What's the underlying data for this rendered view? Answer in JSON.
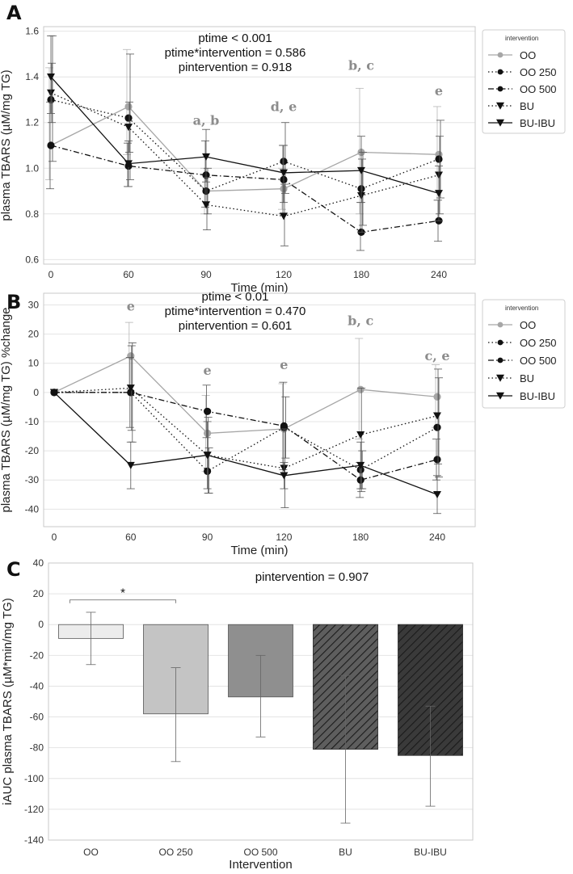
{
  "colors": {
    "OO": "#a6a6a6",
    "OO 250": "#111111",
    "OO 500": "#111111",
    "BU": "#111111",
    "BU-IBU": "#111111",
    "bars": [
      "#ececec",
      "#c4c4c4",
      "#8f8f8f",
      "#5e5e5e",
      "#3a3a3a"
    ]
  },
  "chart_data": [
    {
      "panel": "A",
      "type": "line",
      "xlabel": "Time (min)",
      "ylabel": "plasma TBARS (µM/mg TG)",
      "x": [
        0,
        60,
        90,
        120,
        180,
        240
      ],
      "x_tick_labels": [
        "0",
        "60",
        "90",
        "120",
        "180",
        "240"
      ],
      "ylim": [
        0.58,
        1.62
      ],
      "y_ticks": [
        0.6,
        0.8,
        1.0,
        1.2,
        1.4,
        1.6
      ],
      "y_tick_labels": [
        "0.6",
        "0.8",
        "1.0",
        "1.2",
        "1.4",
        "1.6"
      ],
      "legend_title": "intervention",
      "stats": [
        "ptime < 0.001",
        "ptime*intervention = 0.586",
        "pintervention = 0.918"
      ],
      "annotations": [
        {
          "text": "a, b",
          "x": 90,
          "y": 1.19
        },
        {
          "text": "d, e",
          "x": 120,
          "y": 1.25
        },
        {
          "text": "b, c",
          "x": 180,
          "y": 1.43
        },
        {
          "text": "e",
          "x": 240,
          "y": 1.32
        }
      ],
      "series": [
        {
          "name": "OO",
          "style": "solid",
          "marker": "circle",
          "values": [
            1.1,
            1.27,
            0.9,
            0.91,
            1.07,
            1.06
          ],
          "err_low": [
            0.95,
            1.06,
            0.8,
            0.82,
            0.8,
            0.86
          ],
          "err_high": [
            1.44,
            1.52,
            1.0,
            1.0,
            1.35,
            1.27
          ]
        },
        {
          "name": "OO 250",
          "style": "dotted",
          "marker": "circle",
          "values": [
            1.3,
            1.22,
            0.9,
            1.03,
            0.91,
            1.04
          ],
          "err_low": [
            1.03,
            0.95,
            0.8,
            0.89,
            0.75,
            0.87
          ],
          "err_high": [
            1.58,
            1.5,
            1.0,
            1.2,
            1.07,
            1.21
          ]
        },
        {
          "name": "OO 500",
          "style": "dashdot",
          "marker": "circle",
          "values": [
            1.1,
            1.01,
            0.97,
            0.95,
            0.72,
            0.77
          ],
          "err_low": [
            0.91,
            0.92,
            0.83,
            0.8,
            0.64,
            0.68
          ],
          "err_high": [
            1.29,
            1.11,
            1.12,
            1.1,
            0.85,
            0.86
          ]
        },
        {
          "name": "BU",
          "style": "dotted",
          "marker": "triangle",
          "values": [
            1.33,
            1.18,
            0.84,
            0.79,
            0.88,
            0.97
          ],
          "err_low": [
            1.2,
            1.07,
            0.73,
            0.66,
            0.72,
            0.8
          ],
          "err_high": [
            1.46,
            1.29,
            0.96,
            0.93,
            1.04,
            1.14
          ]
        },
        {
          "name": "BU-IBU",
          "style": "solid",
          "marker": "triangle",
          "values": [
            1.4,
            1.02,
            1.05,
            0.98,
            0.99,
            0.89
          ],
          "err_low": [
            1.24,
            0.92,
            0.94,
            0.85,
            0.85,
            0.77
          ],
          "err_high": [
            1.58,
            1.12,
            1.17,
            1.1,
            1.14,
            1.01
          ]
        }
      ]
    },
    {
      "panel": "B",
      "type": "line",
      "xlabel": "Time (min)",
      "ylabel": "plasma TBARS (µM/mg TG) %change",
      "x": [
        0,
        60,
        90,
        120,
        180,
        240
      ],
      "x_tick_labels": [
        "0",
        "60",
        "90",
        "120",
        "180",
        "240"
      ],
      "ylim": [
        -46,
        34
      ],
      "y_ticks": [
        -40,
        -30,
        -20,
        -10,
        0,
        10,
        20,
        30
      ],
      "y_tick_labels": [
        "-40",
        "-30",
        "-20",
        "-10",
        "0",
        "10",
        "20",
        "30"
      ],
      "legend_title": "intervention",
      "stats": [
        "ptime < 0.01",
        "ptime*intervention = 0.470",
        "pintervention = 0.601"
      ],
      "annotations": [
        {
          "text": "e",
          "x": 60,
          "y": 28
        },
        {
          "text": "e",
          "x": 90,
          "y": 6
        },
        {
          "text": "e",
          "x": 120,
          "y": 8
        },
        {
          "text": "b, c",
          "x": 180,
          "y": 23
        },
        {
          "text": "c, e",
          "x": 240,
          "y": 11
        }
      ],
      "series": [
        {
          "name": "OO",
          "style": "solid",
          "marker": "circle",
          "values": [
            0,
            12.5,
            -14,
            -12.5,
            1,
            -1.5
          ],
          "err_low": [
            0,
            1,
            -27,
            -28,
            -16,
            -12
          ],
          "err_high": [
            0,
            24,
            -1,
            3,
            18.5,
            9.5
          ]
        },
        {
          "name": "OO 250",
          "style": "dotted",
          "marker": "circle",
          "values": [
            0,
            0,
            -27,
            -12,
            -26.5,
            -12
          ],
          "err_low": [
            0,
            -17,
            -34.5,
            -22.5,
            -33,
            -29
          ],
          "err_high": [
            0,
            17,
            -19,
            -1.5,
            -20,
            5
          ]
        },
        {
          "name": "OO 500",
          "style": "dashdot",
          "marker": "circle",
          "values": [
            0,
            0,
            -6.5,
            -11.5,
            -30,
            -23
          ],
          "err_low": [
            0,
            -12,
            -15.5,
            -26.5,
            -36,
            -30
          ],
          "err_high": [
            0,
            12,
            2.5,
            3.5,
            -24,
            -16
          ]
        },
        {
          "name": "BU",
          "style": "dotted",
          "marker": "triangle",
          "values": [
            0,
            1.5,
            -21.5,
            -26,
            -14.5,
            -8
          ],
          "err_low": [
            0,
            -13,
            -34.5,
            -39.5,
            -34,
            -24.5
          ],
          "err_high": [
            0,
            16,
            -8.5,
            -12.5,
            1.5,
            8
          ]
        },
        {
          "name": "BU-IBU",
          "style": "solid",
          "marker": "triangle",
          "values": [
            0,
            -25,
            -21.5,
            -28.5,
            -25,
            -35
          ],
          "err_low": [
            0,
            -33,
            -33,
            -33,
            -33,
            -41.5
          ],
          "err_high": [
            0,
            -17,
            -10,
            -24,
            -17,
            -28.5
          ]
        }
      ]
    },
    {
      "panel": "C",
      "type": "bar",
      "xlabel": "Intervention",
      "ylabel": "iAUC plasma TBARS (µM*min/mg TG)",
      "categories": [
        "OO",
        "OO 250",
        "OO 500",
        "BU",
        "BU-IBU"
      ],
      "values": [
        -9,
        -58,
        -47,
        -81,
        -85
      ],
      "err_low": [
        -26,
        -89,
        -73,
        -129,
        -118
      ],
      "err_high": [
        8,
        -28,
        -20,
        -33,
        -53
      ],
      "patterns": [
        "none",
        "none",
        "none",
        "hatch",
        "hatch"
      ],
      "ylim": [
        -140,
        40
      ],
      "y_ticks": [
        -140,
        -120,
        -100,
        -80,
        -60,
        -40,
        -20,
        0,
        20,
        40
      ],
      "y_tick_labels": [
        "-140",
        "-120",
        "-100",
        "-80",
        "-60",
        "-40",
        "-20",
        "0",
        "20",
        "40"
      ],
      "stats": [
        "pintervention = 0.907"
      ],
      "significance": {
        "from": "OO",
        "to": "OO 250",
        "label": "*"
      }
    }
  ]
}
